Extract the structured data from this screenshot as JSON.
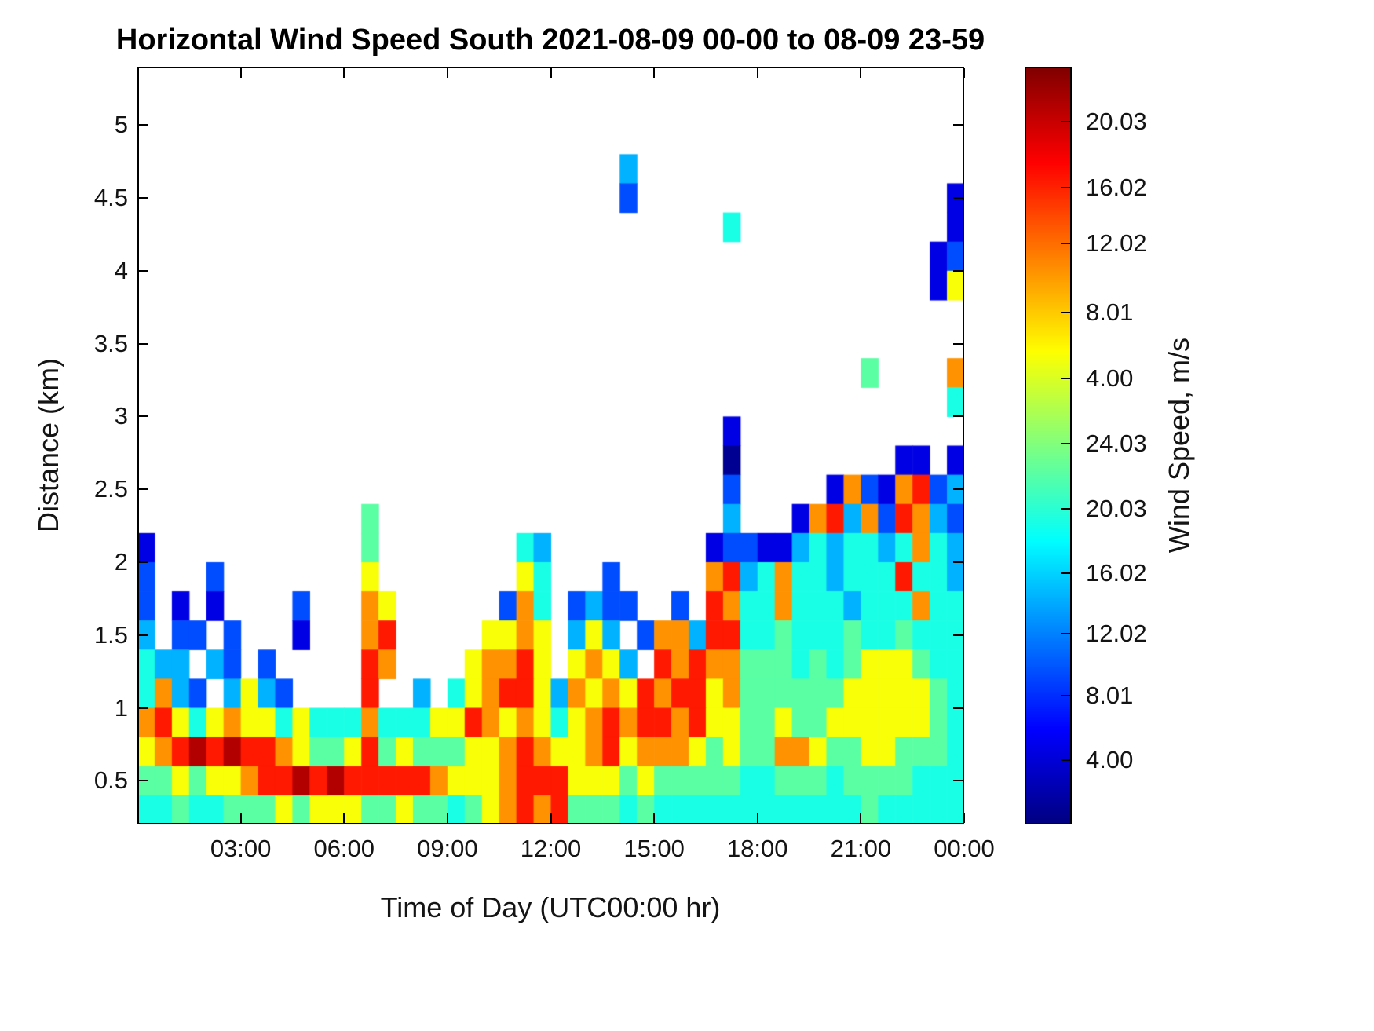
{
  "chart_data": {
    "type": "heatmap",
    "title": "Horizontal Wind Speed South 2021-08-09 00-00 to 08-09 23-59",
    "xlabel": "Time of Day (UTC00:00 hr)",
    "ylabel": "Distance (km)",
    "colorbar_label": "Wind Speed, m/s",
    "colormap": "jet",
    "background": "#ffffff",
    "x_axis": {
      "unit": "hours",
      "min": 0,
      "max": 24,
      "tick_hours": [
        3,
        6,
        9,
        12,
        15,
        18,
        21,
        24
      ],
      "tick_labels": [
        "03:00",
        "06:00",
        "09:00",
        "12:00",
        "15:00",
        "18:00",
        "21:00",
        "00:00"
      ]
    },
    "y_axis": {
      "unit": "km",
      "min": 0.2,
      "max": 5.4,
      "tick_values": [
        0.5,
        1,
        1.5,
        2,
        2.5,
        3,
        3.5,
        4,
        4.5,
        5
      ],
      "tick_labels": [
        "0.5",
        "1",
        "1.5",
        "2",
        "2.5",
        "3",
        "3.5",
        "4",
        "4.5",
        "5"
      ]
    },
    "colorbar": {
      "tick_fracs_from_top": [
        0.073,
        0.16,
        0.233,
        0.324,
        0.411,
        0.497,
        0.583,
        0.668,
        0.748,
        0.83,
        0.915
      ],
      "tick_labels": [
        "20.03",
        "16.02",
        "12.02",
        "8.01",
        "4.00",
        "24.03",
        "20.03",
        "16.02",
        "12.02",
        "8.01",
        "4.00"
      ]
    },
    "grid": {
      "t0_hour": 0,
      "dt_hour": 0.5,
      "y_top_km": 5.4,
      "dy_km": 0.2,
      "nan_char": ".",
      "vmin": 0,
      "vmax": 22,
      "levels_mps": {
        "0": 0.4,
        "1": 2.2,
        "2": 4.4,
        "3": 6.6,
        "4": 8.8,
        "5": 10.2,
        "6": 13.6,
        "7": 16.1,
        "8": 18.7,
        "9": 20.9
      },
      "rows_top_to_bottom": [
        "................................................",
        "................................................",
        "................................................",
        "............................3...................",
        "............................2..................1",
        "..................................4............1",
        "..............................................12",
        "..............................................16",
        "................................................",
        "................................................",
        "..........................................5....7",
        "...............................................4",
        "..................................1.............",
        "..................................0.........11.1",
        "..................................2.....17217823",
        ".............5....................3...1783728732",
        "1............5........43.........122113434434743",
        "2...2........6........64...2.....783474434448443",
        "2.1.1....2...76......274.2322..2.874474443444744",
        "3.22.2...1...78.....6676.363.2773884454445445444",
        "433.32.2.....87....67786.6763.878775554545666544",
        "4732.3632....8..3.467886376768788675555556666654",
        "786467664644474446687676467878878665565566666654",
        "678989887655685655566787667867776565577655665554",
        "556566788989888887666788866656555554455545555444",
        "445445556566655655456787855545444444444444544444"
      ]
    }
  }
}
